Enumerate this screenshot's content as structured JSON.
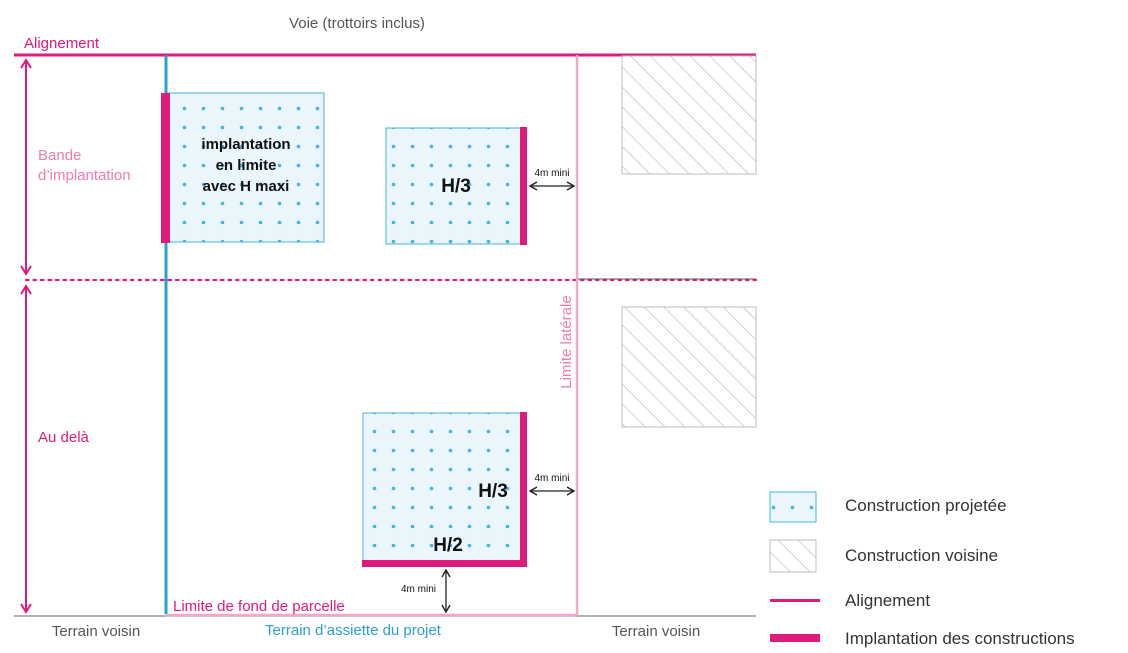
{
  "labels": {
    "voie": "Voie (trottoirs inclus)",
    "alignement": "Alignement",
    "bande_line1": "Bande",
    "bande_line2": "d’implantation",
    "au_dela": "Au delà",
    "limite_laterale": "Limite latérale",
    "limite_fond": "Limite de fond de parcelle",
    "terrain_voisin_left": "Terrain voisin",
    "terrain_assiette": "Terrain d’assiette du projet",
    "terrain_voisin_right": "Terrain voisin"
  },
  "buildings": {
    "limite_line1": "implantation",
    "limite_line2": "en limite",
    "limite_line3": "avec H maxi",
    "middle_label": "H/3",
    "bottom_right_label": "H/3",
    "bottom_label": "H/2"
  },
  "dimensions": {
    "top": "4m mini",
    "right": "4m mini",
    "bottom": "4m mini"
  },
  "legend": {
    "projetee": "Construction projetée",
    "voisine": "Construction voisine",
    "alignement": "Alignement",
    "implantation": "Implantation des constructions"
  },
  "colors": {
    "magenta": "#e0197d",
    "pink_light": "#f2a8c9",
    "blue": "#2a9fd0",
    "building_fill": "#eaf6fc",
    "dot": "#45b3e0",
    "hatch": "#bdbdbd",
    "text_grey": "#555555"
  }
}
